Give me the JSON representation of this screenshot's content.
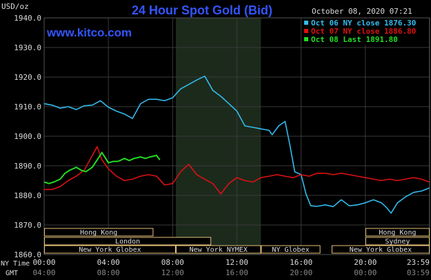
{
  "header": {
    "title": "24 Hour Spot Gold (Bid)",
    "site": "www.kitco.com",
    "units": "USD/oz",
    "datetime": "October 08, 2020 07:21"
  },
  "chart_data": {
    "type": "line",
    "title": "24 Hour Spot Gold (Bid)",
    "ylabel": "USD/oz",
    "ylim": [
      1860,
      1940
    ],
    "yticks": [
      "1940.0",
      "1930.0",
      "1920.0",
      "1910.0",
      "1900.0",
      "1890.0",
      "1880.0",
      "1870.0",
      "1860.0"
    ],
    "grid": true,
    "legend_position": "top-right",
    "x_range": [
      0,
      24
    ],
    "x_tick_hours": [
      0,
      4,
      8,
      12,
      16,
      20,
      23.983
    ],
    "ny_time_labels": [
      "00:00",
      "04:00",
      "08:00",
      "12:00",
      "16:00",
      "20:00",
      "23:59"
    ],
    "gmt_labels": [
      "04:00",
      "08:00",
      "12:00",
      "16:00",
      "20:00",
      "00:00",
      "03:59"
    ],
    "row_labels": {
      "ny": "NY Time",
      "gmt": "GMT"
    },
    "highlight_span_hours": [
      8.2,
      13.5
    ],
    "series": [
      {
        "name": "Oct 06 NY close 1876.30",
        "color": "#33bbee",
        "x": [
          0,
          0.5,
          1,
          1.5,
          2,
          2.5,
          3,
          3.5,
          4,
          4.5,
          5,
          5.5,
          6,
          6.5,
          7,
          7.5,
          8,
          8.5,
          9,
          9.5,
          10,
          10.5,
          11,
          11.5,
          12,
          12.5,
          13,
          13.5,
          14,
          14.2,
          14.6,
          15,
          15.3,
          15.6,
          16,
          16.3,
          16.6,
          17,
          17.5,
          18,
          18.5,
          19,
          19.5,
          20,
          20.5,
          21,
          21.3,
          21.6,
          22,
          22.5,
          23,
          23.5,
          23.98
        ],
        "y": [
          1911,
          1910.5,
          1909.5,
          1910,
          1909,
          1910.3,
          1910.5,
          1912,
          1909.8,
          1908.5,
          1907.5,
          1906,
          1911,
          1912.5,
          1912.5,
          1912,
          1913,
          1916,
          1917.5,
          1919,
          1920.3,
          1915.5,
          1913.5,
          1911,
          1908.5,
          1903.5,
          1903,
          1902.5,
          1902,
          1900.5,
          1903.5,
          1905,
          1897,
          1888,
          1887,
          1880.5,
          1876.5,
          1876.3,
          1876.8,
          1876.2,
          1878.5,
          1876.5,
          1876.8,
          1877.5,
          1878.5,
          1877.5,
          1876,
          1874,
          1877.5,
          1879.5,
          1881,
          1881.5,
          1882.5
        ]
      },
      {
        "name": "Oct 07 NY close 1886.80",
        "color": "#dd1111",
        "x": [
          0,
          0.5,
          1,
          1.5,
          2,
          2.5,
          3,
          3.3,
          3.6,
          4,
          4.5,
          5,
          5.5,
          6,
          6.5,
          7,
          7.5,
          8,
          8.5,
          9,
          9.5,
          10,
          10.5,
          11,
          11.5,
          12,
          12.5,
          13,
          13.5,
          14,
          14.5,
          15,
          15.5,
          16,
          16.5,
          17,
          17.5,
          18,
          18.5,
          19,
          19.5,
          20,
          20.5,
          21,
          21.5,
          22,
          22.5,
          23,
          23.5,
          23.98
        ],
        "y": [
          1882,
          1882,
          1883,
          1885,
          1886.5,
          1888.5,
          1893.5,
          1896.5,
          1892,
          1889,
          1886.5,
          1885,
          1885.5,
          1886.5,
          1887,
          1886.5,
          1883.5,
          1884,
          1888,
          1890.5,
          1887,
          1885.5,
          1884,
          1880.5,
          1884,
          1886,
          1885,
          1884.5,
          1886,
          1886.5,
          1887,
          1886.5,
          1886,
          1887,
          1886.5,
          1887.5,
          1887.5,
          1887,
          1887.5,
          1887,
          1886.5,
          1886,
          1885.5,
          1885,
          1885.5,
          1885,
          1885.5,
          1886,
          1885.5,
          1884.5
        ]
      },
      {
        "name": "Oct 08 Last 1891.80",
        "color": "#22dd22",
        "x": [
          0,
          0.3,
          0.6,
          1,
          1.3,
          1.6,
          2,
          2.3,
          2.6,
          3,
          3.3,
          3.6,
          4,
          4.3,
          4.6,
          5,
          5.3,
          5.6,
          6,
          6.3,
          6.6,
          7,
          7.2
        ],
        "y": [
          1884.5,
          1884,
          1884.5,
          1885.5,
          1887.5,
          1888.5,
          1889.5,
          1888.5,
          1888,
          1889.5,
          1892,
          1894.5,
          1891,
          1891.5,
          1891.5,
          1892.5,
          1891.8,
          1892.5,
          1893,
          1892.5,
          1893,
          1893.5,
          1892
        ]
      }
    ],
    "sessions": [
      {
        "label": "Hong Kong",
        "row": 0,
        "start": 0,
        "end": 6.8
      },
      {
        "label": "Hong Kong",
        "row": 0,
        "start": 20.0,
        "end": 24
      },
      {
        "label": "London",
        "row": 1,
        "start": 0,
        "end": 10.4
      },
      {
        "label": "Sydney",
        "row": 1,
        "start": 20.0,
        "end": 24
      },
      {
        "label": "New York Globex",
        "row": 2,
        "start": 0,
        "end": 8.2
      },
      {
        "label": "New York NYMEX",
        "row": 2,
        "start": 8.2,
        "end": 13.5
      },
      {
        "label": "NY Globex",
        "row": 2,
        "start": 13.5,
        "end": 17.2
      },
      {
        "label": "New York Globex",
        "row": 2,
        "start": 17.9,
        "end": 24
      }
    ]
  },
  "colors": {
    "background": "#000000",
    "grid": "#3a3a3a",
    "axis_text": "#dddddd",
    "title": "#3355ff",
    "highlight": "#1c2a1c",
    "session_box": "#e8c27a"
  }
}
